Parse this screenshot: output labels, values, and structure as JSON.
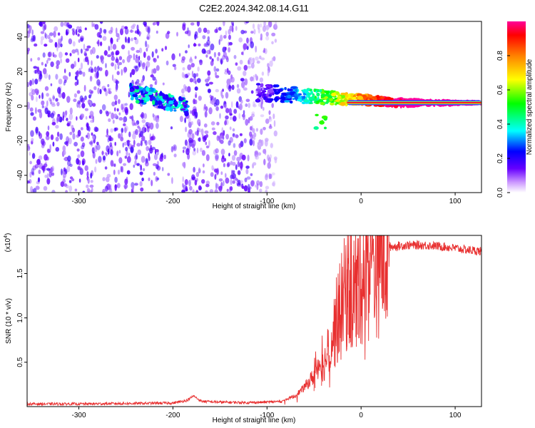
{
  "chart_data": [
    {
      "type": "heatmap",
      "title": "C2E2.2024.342.08.14.G11",
      "xlabel": "Height of straight line (km)",
      "ylabel": "Frequency (Hz)",
      "xlim": [
        -355,
        128
      ],
      "ylim": [
        -50,
        49
      ],
      "xticks": [
        -300,
        -200,
        -100,
        0,
        100
      ],
      "yticks": [
        -40,
        -20,
        0,
        20,
        40
      ],
      "colorbar": {
        "label": "Normalized spectral amplitude",
        "range": [
          0,
          1
        ],
        "ticks": [
          0.0,
          0.2,
          0.4,
          0.6,
          0.8
        ],
        "tick_labels": [
          "0.0",
          "0.2",
          "0.4",
          "0.6",
          "0.8"
        ],
        "colormap": [
          "#ffffff",
          "#6600ff",
          "#0000ff",
          "#00ffff",
          "#00ff00",
          "#ffff00",
          "#ff8000",
          "#ff0000",
          "#ff00a0"
        ]
      },
      "features": [
        {
          "name": "scattered noise",
          "x": [
            -355,
            -90
          ],
          "freq": [
            -50,
            49
          ],
          "amplitude": [
            0.05,
            0.2
          ]
        },
        {
          "name": "gap",
          "x": [
            -215,
            -190
          ]
        },
        {
          "name": "early signal",
          "x": [
            -245,
            -185
          ],
          "freq_start": 8,
          "freq_end": 0,
          "amplitude_max": 0.45
        },
        {
          "name": "main signal",
          "x": [
            -110,
            128
          ],
          "freq_start": 8,
          "freq_end": 2,
          "amplitude_max": 1.0
        }
      ],
      "grid": false
    },
    {
      "type": "line",
      "xlabel": "Height of straight line (km)",
      "ylabel": "SNR (10 * v/v)",
      "y_multiplier": "(x10⁴)",
      "y_multiplier_base": "(x10",
      "y_multiplier_exp": "4",
      "y_multiplier_close": ")",
      "xlim": [
        -355,
        128
      ],
      "ylim": [
        0,
        1.93
      ],
      "xticks": [
        -300,
        -200,
        -100,
        0,
        100
      ],
      "yticks": [
        0.5,
        1.0,
        1.5
      ],
      "ytick_labels": [
        "0.5",
        "1.0",
        "1.5"
      ],
      "color": "#e83030",
      "grid": false,
      "series_points": [
        [
          -355,
          0.03
        ],
        [
          -300,
          0.03
        ],
        [
          -250,
          0.035
        ],
        [
          -200,
          0.04
        ],
        [
          -185,
          0.07
        ],
        [
          -178,
          0.12
        ],
        [
          -170,
          0.06
        ],
        [
          -150,
          0.05
        ],
        [
          -120,
          0.045
        ],
        [
          -100,
          0.05
        ],
        [
          -85,
          0.06
        ],
        [
          -70,
          0.12
        ],
        [
          -60,
          0.22
        ],
        [
          -50,
          0.35
        ],
        [
          -45,
          0.5
        ],
        [
          -40,
          0.45
        ],
        [
          -35,
          0.65
        ],
        [
          -30,
          0.8
        ],
        [
          -25,
          1.0
        ],
        [
          -20,
          1.15
        ],
        [
          -15,
          1.35
        ],
        [
          -10,
          1.3
        ],
        [
          -5,
          1.35
        ],
        [
          0,
          1.5
        ],
        [
          10,
          1.6
        ],
        [
          20,
          1.7
        ],
        [
          30,
          1.8
        ],
        [
          50,
          1.82
        ],
        [
          70,
          1.82
        ],
        [
          90,
          1.8
        ],
        [
          110,
          1.77
        ],
        [
          128,
          1.75
        ]
      ],
      "spikes": [
        [
          -15,
          1.93
        ],
        [
          -42,
          0.8
        ],
        [
          -50,
          0.55
        ],
        [
          -25,
          1.5
        ],
        [
          -5,
          1.7
        ]
      ]
    }
  ]
}
